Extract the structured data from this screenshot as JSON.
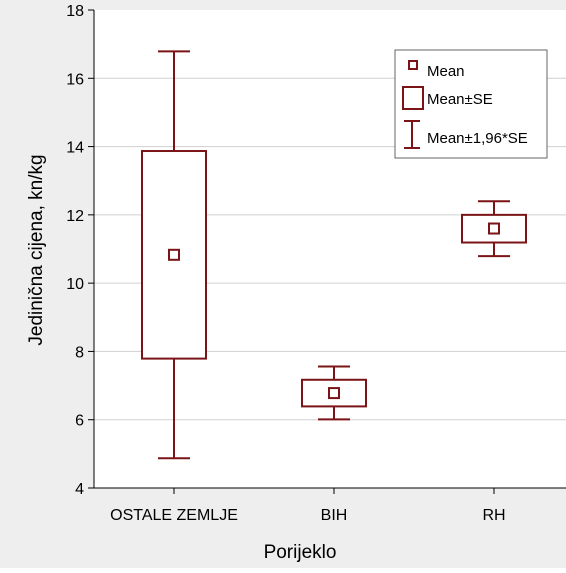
{
  "chart_data": {
    "type": "box",
    "title": "",
    "xlabel": "Porijeklo",
    "ylabel": "Jedinična cijena, kn/kg",
    "ylim": [
      4,
      18
    ],
    "yticks": [
      "4",
      "6",
      "8",
      "10",
      "12",
      "14",
      "16",
      "18"
    ],
    "categories": [
      "OSTALE ZEMLJE",
      "BIH",
      "RH"
    ],
    "series": [
      {
        "category": "OSTALE ZEMLJE",
        "mean": 10.83,
        "se_low": 7.79,
        "se_high": 13.87,
        "ci_low": 4.87,
        "ci_high": 16.79
      },
      {
        "category": "BIH",
        "mean": 6.78,
        "se_low": 6.39,
        "se_high": 7.17,
        "ci_low": 6.01,
        "ci_high": 7.56
      },
      {
        "category": "RH",
        "mean": 11.6,
        "se_low": 11.19,
        "se_high": 12.0,
        "ci_low": 10.79,
        "ci_high": 12.4
      }
    ],
    "grid": true,
    "legend": {
      "position": "top-right",
      "entries": [
        "Mean",
        "Mean±SE",
        "Mean±1,96*SE"
      ]
    },
    "colors": {
      "marks": "#7b1416",
      "frame_bg": "#eeeeee",
      "plot_bg": "#ffffff",
      "grid": "#d0d0d0",
      "axis": "#000000"
    }
  }
}
